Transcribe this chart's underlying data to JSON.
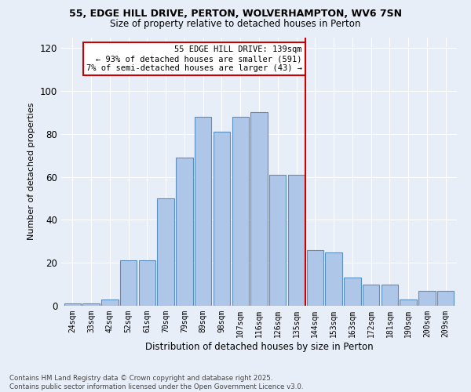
{
  "title1": "55, EDGE HILL DRIVE, PERTON, WOLVERHAMPTON, WV6 7SN",
  "title2": "Size of property relative to detached houses in Perton",
  "xlabel": "Distribution of detached houses by size in Perton",
  "ylabel": "Number of detached properties",
  "footer1": "Contains HM Land Registry data © Crown copyright and database right 2025.",
  "footer2": "Contains public sector information licensed under the Open Government Licence v3.0.",
  "categories": [
    "24sqm",
    "33sqm",
    "42sqm",
    "52sqm",
    "61sqm",
    "70sqm",
    "79sqm",
    "89sqm",
    "98sqm",
    "107sqm",
    "116sqm",
    "126sqm",
    "135sqm",
    "144sqm",
    "153sqm",
    "163sqm",
    "172sqm",
    "181sqm",
    "190sqm",
    "200sqm",
    "209sqm"
  ],
  "values": [
    1,
    1,
    3,
    21,
    21,
    50,
    69,
    88,
    81,
    88,
    90,
    61,
    61,
    26,
    25,
    13,
    10,
    10,
    3,
    7,
    7
  ],
  "bar_color": "#aec6e8",
  "bar_edge_color": "#5a8fc0",
  "bg_color": "#e8eef8",
  "grid_color": "#ffffff",
  "vline_x": 12.5,
  "vline_color": "#cc0000",
  "annotation_title": "55 EDGE HILL DRIVE: 139sqm",
  "annotation_line1": "← 93% of detached houses are smaller (591)",
  "annotation_line2": "7% of semi-detached houses are larger (43) →",
  "annotation_box_color": "#cc0000",
  "ylim": [
    0,
    125
  ],
  "yticks": [
    0,
    20,
    40,
    60,
    80,
    100,
    120
  ]
}
